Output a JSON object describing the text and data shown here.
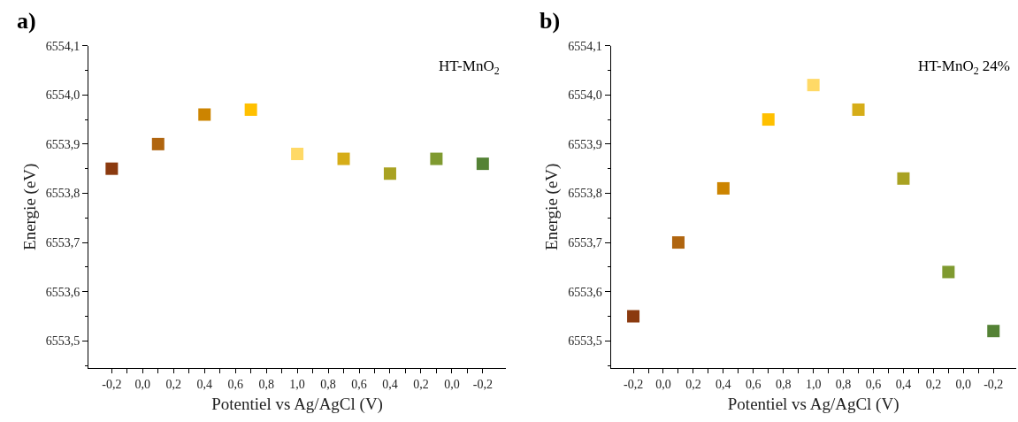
{
  "chart_data": [
    {
      "type": "scatter",
      "title": "a)",
      "xlabel": "Potentiel vs Ag/AgCl (V)",
      "ylabel": "Energie (eV)",
      "annotations": [
        "HT-MnO$_{2}$"
      ],
      "categories": [
        "-0,2",
        null,
        "0,0",
        null,
        "0,2",
        null,
        "0,4",
        null,
        "0,6",
        null,
        "0,8",
        null,
        "1,0",
        null,
        "0,8",
        null,
        "0,6",
        null,
        "0,4",
        null,
        "0,2",
        null,
        "0,0",
        null,
        "-0,2"
      ],
      "values": [
        6553.85,
        null,
        null,
        6553.9,
        null,
        null,
        6553.96,
        null,
        null,
        6553.97,
        null,
        null,
        6553.88,
        null,
        null,
        6553.87,
        null,
        null,
        6553.84,
        null,
        null,
        6553.87,
        null,
        null,
        6553.86
      ],
      "colors": [
        "#8b3a0f",
        null,
        null,
        "#b0650f",
        null,
        null,
        "#cc8400",
        null,
        null,
        "#ffc000",
        null,
        null,
        "#ffd966",
        null,
        null,
        "#d6ad18",
        null,
        null,
        "#a9a222",
        null,
        null,
        "#7f9a30",
        null,
        null,
        "#548235"
      ],
      "marker": "square",
      "ylim": [
        6553.445,
        6554.1
      ],
      "yticks": [
        {
          "value": 6553.5,
          "label": "6553,5"
        },
        {
          "value": 6553.6,
          "label": "6553,6"
        },
        {
          "value": 6553.7,
          "label": "6553,7"
        },
        {
          "value": 6553.8,
          "label": "6553,8"
        },
        {
          "value": 6553.9,
          "label": "6553,9"
        },
        {
          "value": 6554.0,
          "label": "6554,0"
        },
        {
          "value": 6554.1,
          "label": "6554,1"
        }
      ]
    },
    {
      "type": "scatter",
      "title": "b)",
      "xlabel": "Potentiel vs Ag/AgCl (V)",
      "ylabel": "Energie (eV)",
      "annotations": [
        "HT-MnO$_{2}$ 24%"
      ],
      "categories": [
        "-0,2",
        null,
        "0,0",
        null,
        "0,2",
        null,
        "0,4",
        null,
        "0,6",
        null,
        "0,8",
        null,
        "1,0",
        null,
        "0,8",
        null,
        "0,6",
        null,
        "0,4",
        null,
        "0,2",
        null,
        "0,0",
        null,
        "-0,2"
      ],
      "values": [
        6553.55,
        null,
        null,
        6553.7,
        null,
        null,
        6553.81,
        null,
        null,
        6553.95,
        null,
        null,
        6554.02,
        null,
        null,
        6553.97,
        null,
        null,
        6553.83,
        null,
        null,
        6553.64,
        null,
        null,
        6553.52
      ],
      "colors": [
        "#8b3a0f",
        null,
        null,
        "#b0650f",
        null,
        null,
        "#cc8400",
        null,
        null,
        "#ffc000",
        null,
        null,
        "#ffd966",
        null,
        null,
        "#d6ad18",
        null,
        null,
        "#a9a222",
        null,
        null,
        "#7f9a30",
        null,
        null,
        "#548235"
      ],
      "marker": "square",
      "ylim": [
        6553.445,
        6554.1
      ],
      "yticks": [
        {
          "value": 6553.5,
          "label": "6553,5"
        },
        {
          "value": 6553.6,
          "label": "6553,6"
        },
        {
          "value": 6553.7,
          "label": "6553,7"
        },
        {
          "value": 6553.8,
          "label": "6553,8"
        },
        {
          "value": 6553.9,
          "label": "6553,9"
        },
        {
          "value": 6554.0,
          "label": "6554,0"
        },
        {
          "value": 6554.1,
          "label": "6554,1"
        }
      ]
    }
  ]
}
